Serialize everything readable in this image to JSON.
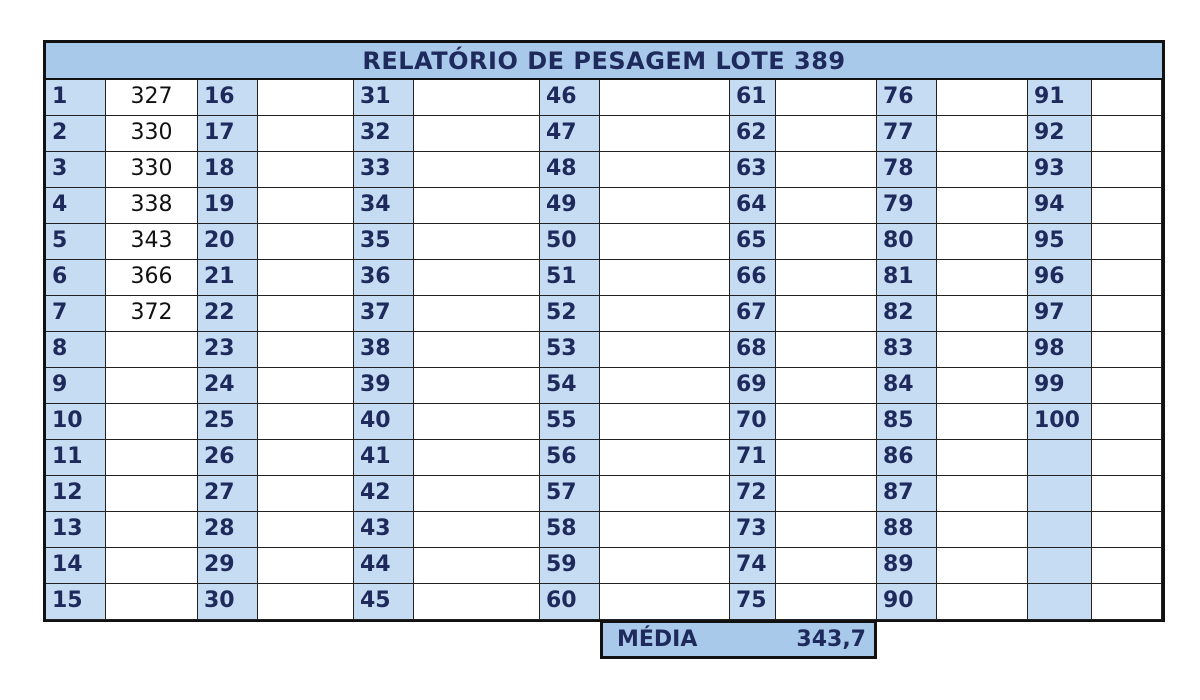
{
  "title": "RELATÓRIO DE PESAGEM LOTE 389",
  "columns": [
    {
      "numbers": [
        "1",
        "2",
        "3",
        "4",
        "5",
        "6",
        "7",
        "8",
        "9",
        "10",
        "11",
        "12",
        "13",
        "14",
        "15"
      ],
      "values": [
        "327",
        "330",
        "330",
        "338",
        "343",
        "366",
        "372",
        "",
        "",
        "",
        "",
        "",
        "",
        "",
        ""
      ]
    },
    {
      "numbers": [
        "16",
        "17",
        "18",
        "19",
        "20",
        "21",
        "22",
        "23",
        "24",
        "25",
        "26",
        "27",
        "28",
        "29",
        "30"
      ],
      "values": [
        "",
        "",
        "",
        "",
        "",
        "",
        "",
        "",
        "",
        "",
        "",
        "",
        "",
        "",
        ""
      ]
    },
    {
      "numbers": [
        "31",
        "32",
        "33",
        "34",
        "35",
        "36",
        "37",
        "38",
        "39",
        "40",
        "41",
        "42",
        "43",
        "44",
        "45"
      ],
      "values": [
        "",
        "",
        "",
        "",
        "",
        "",
        "",
        "",
        "",
        "",
        "",
        "",
        "",
        "",
        ""
      ]
    },
    {
      "numbers": [
        "46",
        "47",
        "48",
        "49",
        "50",
        "51",
        "52",
        "53",
        "54",
        "55",
        "56",
        "57",
        "58",
        "59",
        "60"
      ],
      "values": [
        "",
        "",
        "",
        "",
        "",
        "",
        "",
        "",
        "",
        "",
        "",
        "",
        "",
        "",
        ""
      ]
    },
    {
      "numbers": [
        "61",
        "62",
        "63",
        "64",
        "65",
        "66",
        "67",
        "68",
        "69",
        "70",
        "71",
        "72",
        "73",
        "74",
        "75"
      ],
      "values": [
        "",
        "",
        "",
        "",
        "",
        "",
        "",
        "",
        "",
        "",
        "",
        "",
        "",
        "",
        ""
      ]
    },
    {
      "numbers": [
        "76",
        "77",
        "78",
        "79",
        "80",
        "81",
        "82",
        "83",
        "84",
        "85",
        "86",
        "87",
        "88",
        "89",
        "90"
      ],
      "values": [
        "",
        "",
        "",
        "",
        "",
        "",
        "",
        "",
        "",
        "",
        "",
        "",
        "",
        "",
        ""
      ]
    },
    {
      "numbers": [
        "91",
        "92",
        "93",
        "94",
        "95",
        "96",
        "97",
        "98",
        "99",
        "100",
        "",
        "",
        "",
        "",
        ""
      ],
      "values": [
        "",
        "",
        "",
        "",
        "",
        "",
        "",
        "",
        "",
        "",
        "",
        "",
        "",
        "",
        ""
      ]
    }
  ],
  "average": {
    "label": "MÉDIA",
    "value": "343,7"
  },
  "colors": {
    "header_fill": "#a9c9ea",
    "number_fill": "#c6dcf2",
    "text_dark": "#1f2a5c"
  }
}
